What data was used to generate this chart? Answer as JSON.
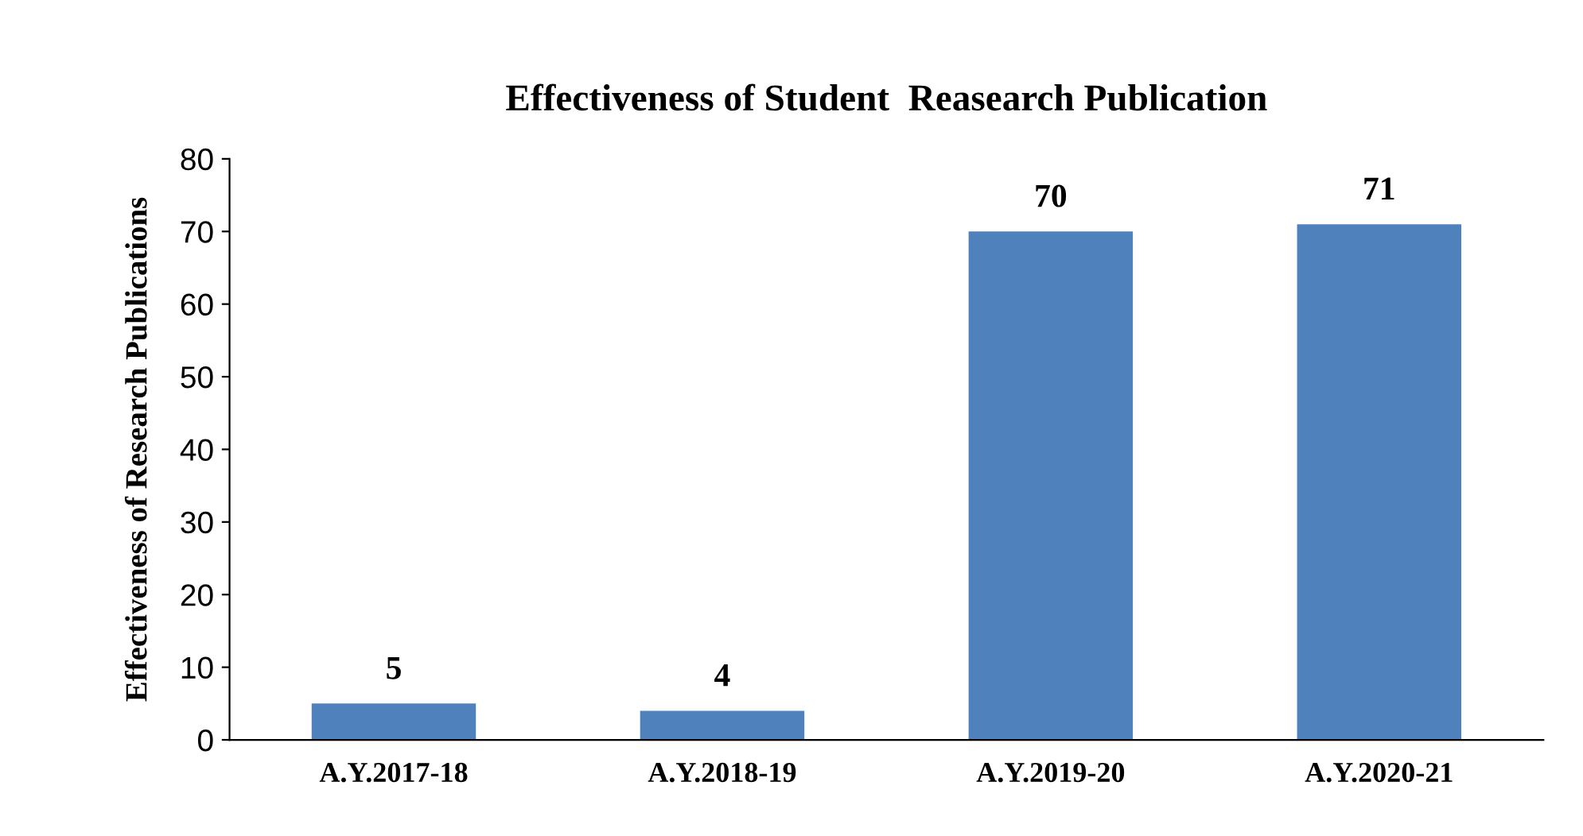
{
  "chart_data": {
    "type": "bar",
    "title": "Effectiveness of Student  Reasearch Publication",
    "ylabel": "Effectiveness of Research Publications",
    "categories": [
      "A.Y.2017-18",
      "A.Y.2018-19",
      "A.Y.2019-20",
      "A.Y.2020-21"
    ],
    "values": [
      5,
      4,
      70,
      71
    ],
    "color": "#4f81bd",
    "ylim": [
      0,
      80
    ],
    "yticks": [
      0,
      10,
      20,
      30,
      40,
      50,
      60,
      70,
      80
    ],
    "grid": false,
    "data_labels": true
  }
}
